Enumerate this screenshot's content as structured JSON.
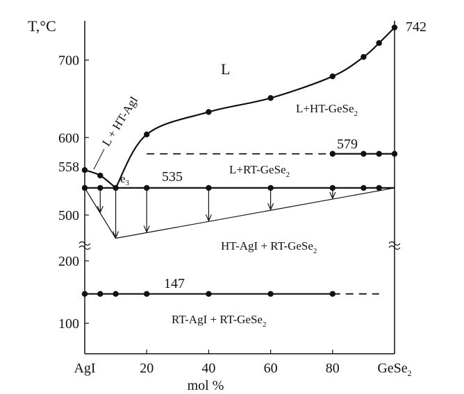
{
  "chart_data": {
    "type": "phase-diagram",
    "xlabel": "mol %",
    "ylabel": "T,°C",
    "x_tick_labels": [
      "AgI",
      "20",
      "40",
      "60",
      "80",
      "GeSe2"
    ],
    "x_ticks": [
      0,
      20,
      40,
      60,
      80,
      100
    ],
    "y_tick_labels": [
      "100",
      "200",
      "500",
      "600",
      "700"
    ],
    "y_ticks": [
      100,
      200,
      500,
      600,
      700
    ],
    "y_axis_break": true,
    "phase_labels": {
      "liquid": "L",
      "l_ht_gese2": "L+HT-GeSe",
      "l_rt_gese2": "L+RT-GeSe",
      "l_ht_agi": "L + HT-AgI",
      "ht_agi_rt_gese2": "HT-AgI + RT-GeSe",
      "rt_agi_rt_gese2": "RT-AgI + RT-GeSe"
    },
    "subscript_2": "2",
    "point_labels": {
      "t558": "558",
      "t742": "742",
      "t579": "579",
      "t535": "535",
      "t147": "147",
      "eutectic": "e",
      "eutectic_sub": "3"
    },
    "liquidus_agi_side": {
      "x": [
        0,
        5,
        10
      ],
      "y": [
        558,
        551,
        535
      ]
    },
    "liquidus_gese2_side": {
      "x": [
        10,
        20,
        40,
        60,
        80,
        90,
        95,
        100
      ],
      "y": [
        535,
        604,
        633,
        651,
        679,
        704,
        722,
        742
      ]
    },
    "transition_579": {
      "x_dashed_from": 20,
      "x": [
        80,
        90,
        95,
        100
      ],
      "y": 579
    },
    "eutectic_535": {
      "x": [
        0,
        5,
        10,
        20,
        40,
        60,
        80,
        90,
        95
      ],
      "y": 535
    },
    "transition_147": {
      "x": [
        0,
        5,
        10,
        20,
        40,
        60,
        80
      ],
      "y": 147,
      "dashed_to": 95
    },
    "cooling_arrows_x": [
      5,
      10,
      20,
      40,
      60,
      80
    ],
    "tammann_triangle": {
      "apex_x": 10,
      "apex_y_scaled": 470
    }
  }
}
